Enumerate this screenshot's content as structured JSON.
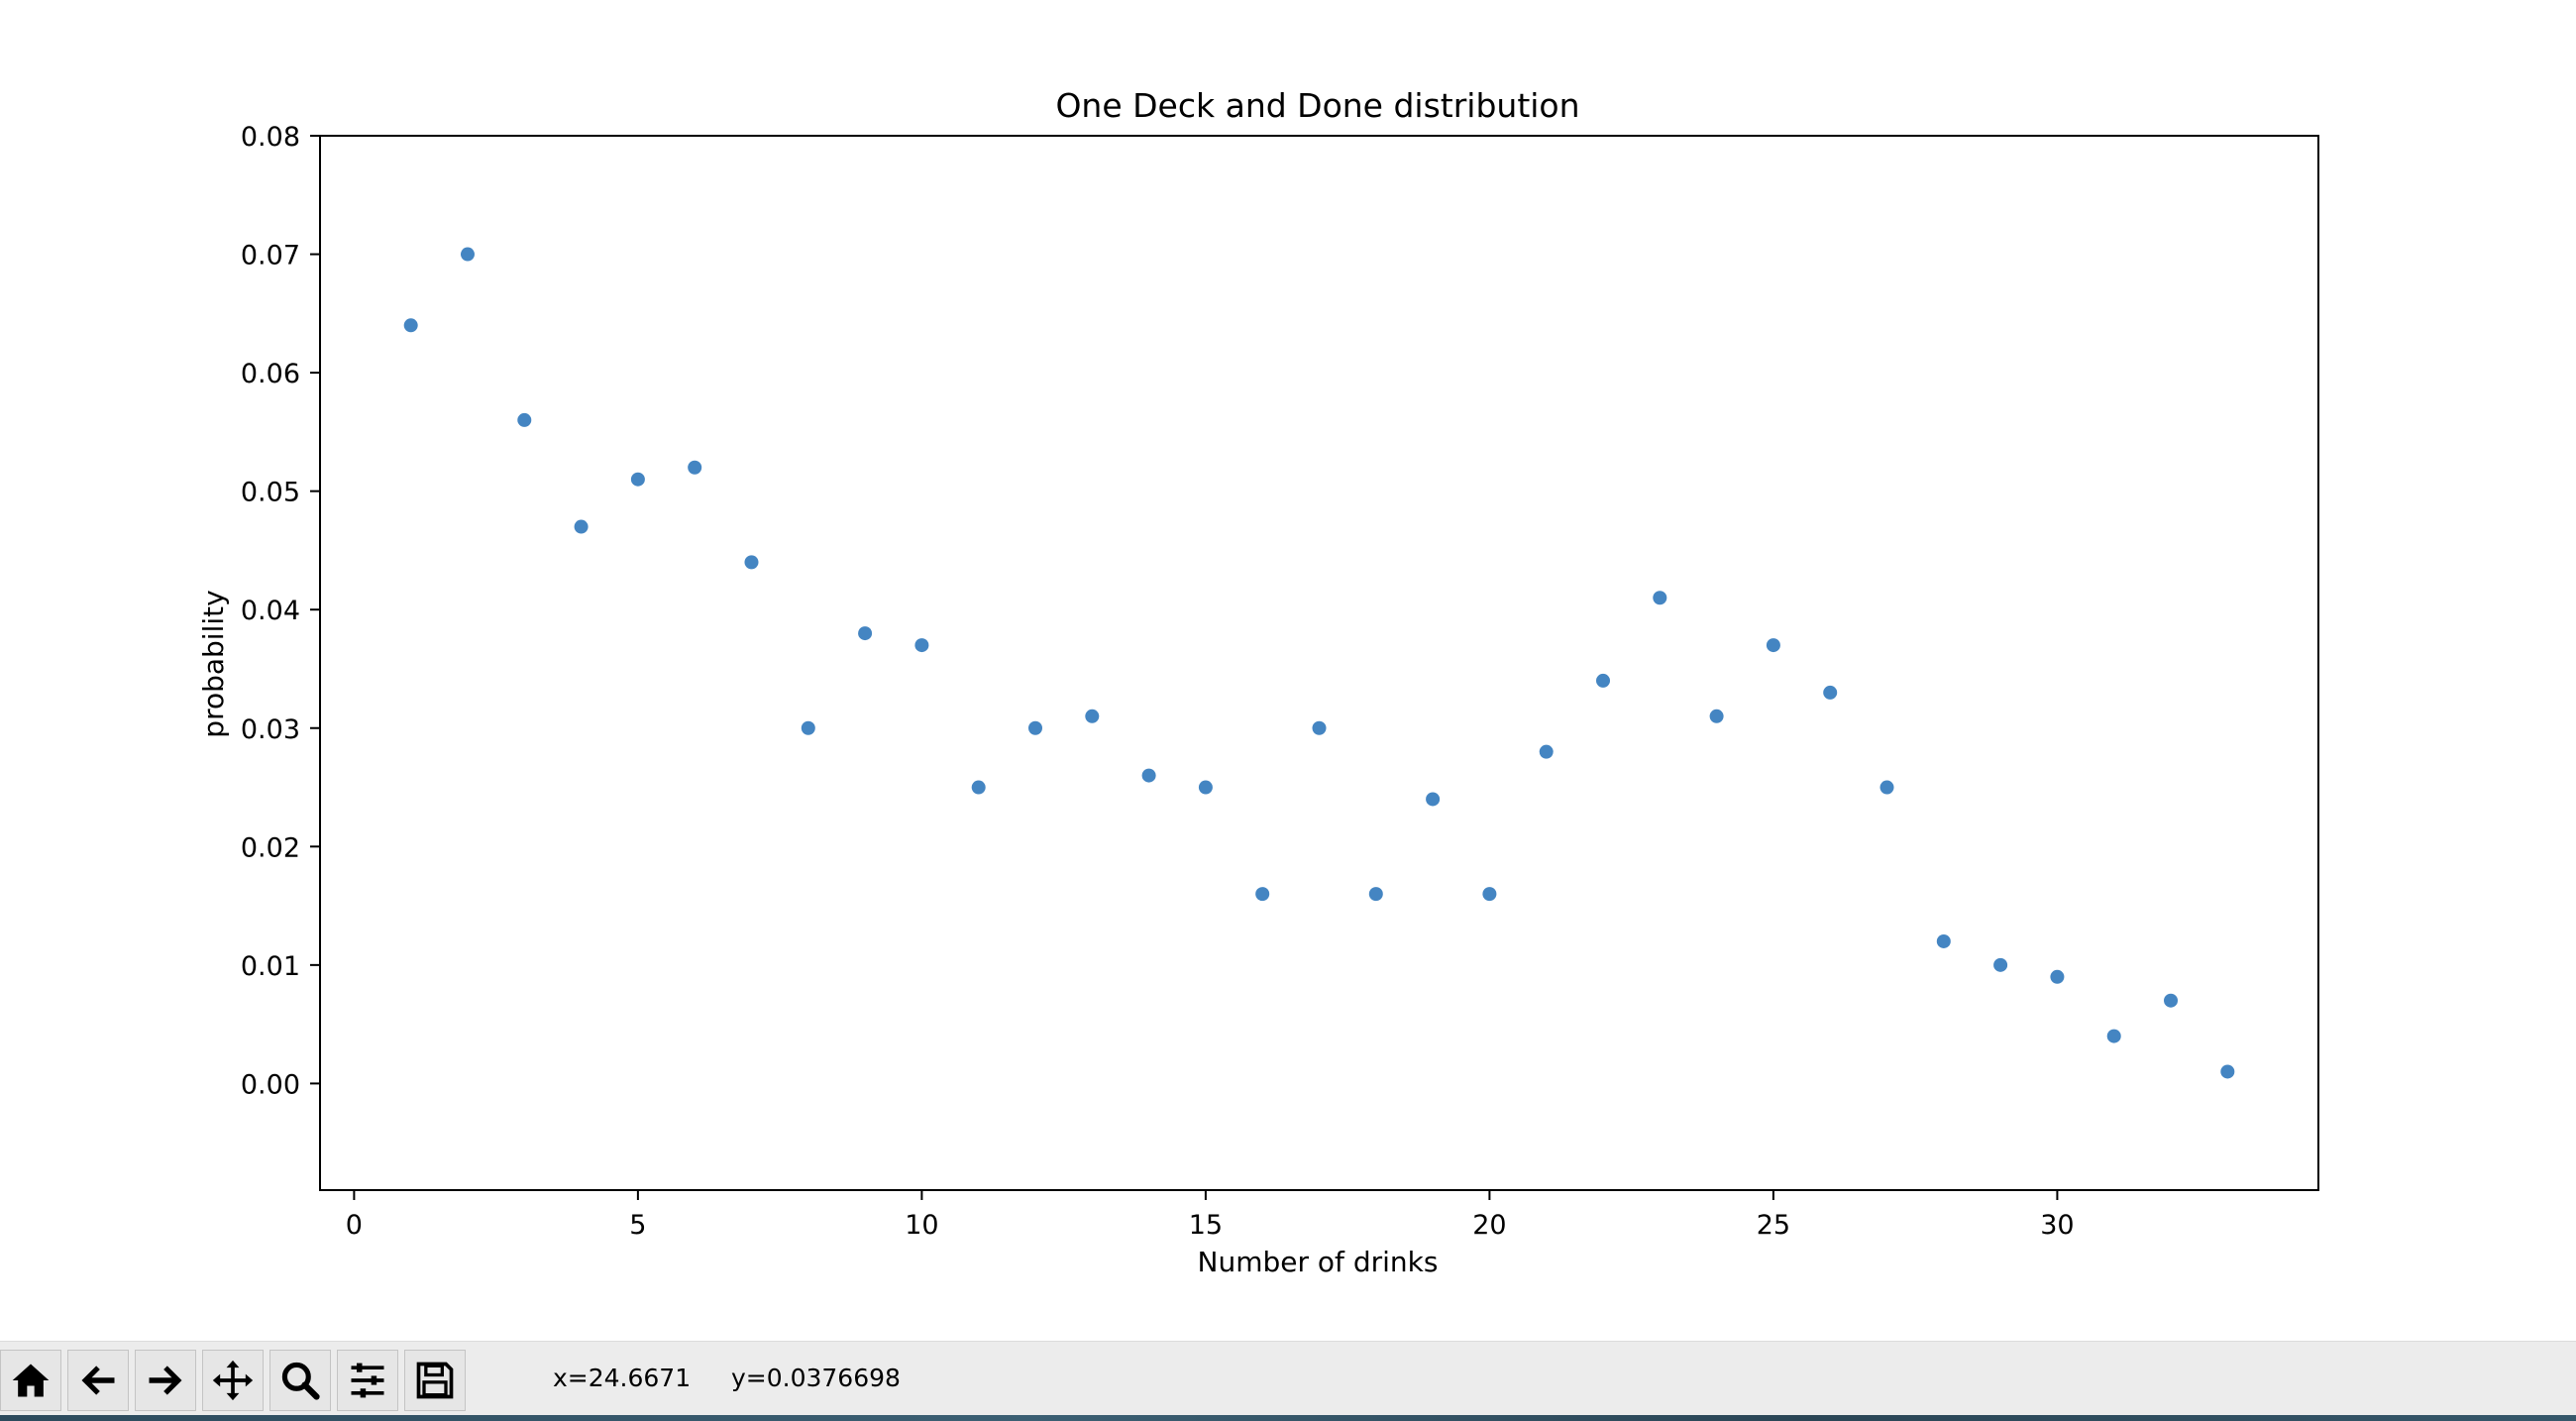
{
  "chart_data": {
    "type": "scatter",
    "title": "One Deck and Done distribution",
    "xlabel": "Number of drinks",
    "ylabel": "probability",
    "xlim": [
      -0.6,
      34.6
    ],
    "ylim": [
      -0.009,
      0.08
    ],
    "xticks": [
      "0",
      "5",
      "10",
      "15",
      "20",
      "25",
      "30"
    ],
    "xtick_values": [
      0,
      5,
      10,
      15,
      20,
      25,
      30
    ],
    "yticks": [
      "0.00",
      "0.01",
      "0.02",
      "0.03",
      "0.04",
      "0.05",
      "0.06",
      "0.07",
      "0.08"
    ],
    "ytick_values": [
      0.0,
      0.01,
      0.02,
      0.03,
      0.04,
      0.05,
      0.06,
      0.07,
      0.08
    ],
    "grid": false,
    "marker_color": "#3a7ebf",
    "x": [
      1,
      2,
      3,
      4,
      5,
      6,
      7,
      8,
      9,
      10,
      11,
      12,
      13,
      14,
      15,
      16,
      17,
      18,
      19,
      20,
      21,
      22,
      23,
      24,
      25,
      26,
      27,
      28,
      29,
      30,
      31,
      32,
      33
    ],
    "y": [
      0.064,
      0.07,
      0.056,
      0.047,
      0.051,
      0.052,
      0.044,
      0.03,
      0.038,
      0.037,
      0.025,
      0.03,
      0.031,
      0.026,
      0.025,
      0.016,
      0.03,
      0.016,
      0.024,
      0.016,
      0.028,
      0.034,
      0.041,
      0.031,
      0.037,
      0.033,
      0.025,
      0.012,
      0.01,
      0.009,
      0.004,
      0.007,
      0.001
    ]
  },
  "toolbar": {
    "buttons": [
      {
        "name": "home-button",
        "icon": "home-icon"
      },
      {
        "name": "back-button",
        "icon": "arrow-left-icon"
      },
      {
        "name": "forward-button",
        "icon": "arrow-right-icon"
      },
      {
        "name": "pan-button",
        "icon": "move-icon"
      },
      {
        "name": "zoom-button",
        "icon": "magnifier-icon"
      },
      {
        "name": "configure-subplots-button",
        "icon": "sliders-icon"
      },
      {
        "name": "save-button",
        "icon": "floppy-disk-icon"
      }
    ],
    "x_readout": "x=24.6671",
    "y_readout": "y=0.0376698"
  }
}
